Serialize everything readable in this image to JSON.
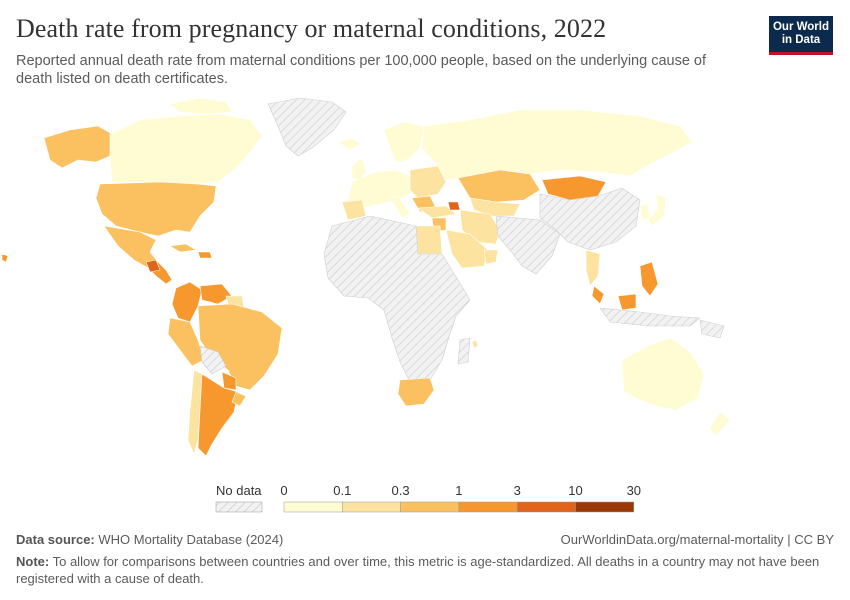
{
  "header": {
    "title": "Death rate from pregnancy or maternal conditions, 2022",
    "subtitle": "Reported annual death rate from maternal conditions per 100,000 people, based on the underlying cause of death listed on death certificates."
  },
  "logo": {
    "line1": "Our World",
    "line2": "in Data"
  },
  "legend": {
    "no_data_label": "No data",
    "ticks": [
      "0",
      "0.1",
      "0.3",
      "1",
      "3",
      "10",
      "30"
    ],
    "colors": [
      "#fffbd3",
      "#fde3a0",
      "#fbc05f",
      "#f7982f",
      "#e0641a",
      "#9a3908"
    ]
  },
  "map_colors": {
    "no_data": "#ebebeb",
    "ocean": "#ffffff"
  },
  "footer": {
    "source_label": "Data source:",
    "source_text": "WHO Mortality Database (2024)",
    "url": "OurWorldinData.org/maternal-mortality | CC BY",
    "note_label": "Note:",
    "note_text": "To allow for comparisons between countries and over time, this metric is age-standardized. All deaths in a country may not have been registered with a cause of death."
  }
}
